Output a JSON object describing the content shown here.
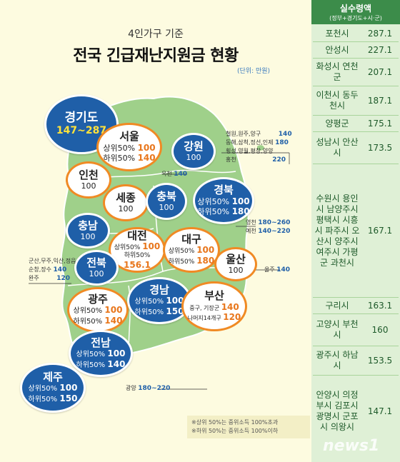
{
  "header": {
    "subtitle": "4인가구 기준",
    "title": "전국 긴급재난지원금 현황",
    "unit": "(단위: 만원)"
  },
  "regions": {
    "gyeonggi": {
      "name": "경기도",
      "value": "147~287"
    },
    "seoul": {
      "name": "서울",
      "upper_label": "상위50%",
      "upper": "100",
      "lower_label": "하위50%",
      "lower": "140"
    },
    "gangwon": {
      "name": "강원",
      "value": "100"
    },
    "incheon": {
      "name": "인천",
      "value": "100"
    },
    "sejong": {
      "name": "세종",
      "value": "100"
    },
    "chungbuk": {
      "name": "충북",
      "value": "100"
    },
    "gyeongbuk": {
      "name": "경북",
      "upper_label": "상위50%",
      "upper": "100",
      "lower_label": "하위50%",
      "lower": "180"
    },
    "chungnam": {
      "name": "충남",
      "value": "100"
    },
    "daejeon": {
      "name": "대전",
      "upper_label": "상위50%",
      "upper": "100",
      "lower_label": "하위50%",
      "lower": "156.1"
    },
    "daegu": {
      "name": "대구",
      "upper_label": "상위50%",
      "upper": "100",
      "lower_label": "하위50%",
      "lower": "180"
    },
    "jeonbuk": {
      "name": "전북",
      "value": "100"
    },
    "ulsan": {
      "name": "울산",
      "value": "100"
    },
    "gwangju": {
      "name": "광주",
      "upper_label": "상위50%",
      "upper": "100",
      "lower_label": "하위50%",
      "lower": "140"
    },
    "gyeongnam": {
      "name": "경남",
      "upper_label": "상위50%",
      "upper": "100",
      "lower_label": "하위50%",
      "lower": "150"
    },
    "busan": {
      "name": "부산",
      "line1_label": "중구, 기장군",
      "line1": "140",
      "line2_label": "나머지14개구",
      "line2": "120"
    },
    "jeonnam": {
      "name": "전남",
      "upper_label": "상위50%",
      "upper": "100",
      "lower_label": "하위50%",
      "lower": "140"
    },
    "jeju": {
      "name": "제주",
      "upper_label": "상위50%",
      "upper": "100",
      "lower_label": "하위50%",
      "lower": "150"
    }
  },
  "notes": {
    "gangwon_1_label": "철원,원주,양구",
    "gangwon_1": "140",
    "gangwon_2_label": "동해,삼척,정선,인제",
    "gangwon_2": "180",
    "gangwon_3_label": "횡성,영월,평창,양양",
    "gangwon_3": "",
    "gangwon_4_label": "홍천",
    "gangwon_4": "220",
    "okcheon_label": "옥천",
    "okcheon": "140",
    "yeongcheon_label": "영천",
    "yeongcheon": "180~260",
    "yecheon_label": "예천",
    "yecheon": "140~220",
    "jeonbuk_1_label": "군산,무주,익산,정읍",
    "jeonbuk_1": "",
    "jeonbuk_2_label": "순창,장수",
    "jeonbuk_2": "140",
    "jeonbuk_3_label": "완주",
    "jeonbuk_3": "120",
    "ulju_label": "울주",
    "ulju": "140",
    "gwangyang_label": "광양",
    "gwangyang": "180~220"
  },
  "footnotes": [
    "※상위 50%는 중위소득 100%초과",
    "※하위 50%는 중위소득 100%이하"
  ],
  "table": {
    "title": "실수령액",
    "subtitle": "(정부+경기도+시·군)",
    "rows": [
      {
        "names": "포천시",
        "amount": "287.1"
      },
      {
        "names": "안성시",
        "amount": "227.1"
      },
      {
        "names": "화성시 연천군",
        "amount": "207.1"
      },
      {
        "names": "이천시 동두천시",
        "amount": "187.1"
      },
      {
        "names": "양평군",
        "amount": "175.1"
      },
      {
        "names": "성남시 안산시",
        "amount": "173.5"
      },
      {
        "names": "수원시 용인시 남양주시 평택시 시흥시 파주시 오산시 양주시 여주시 가평군 과천시",
        "amount": "167.1"
      },
      {
        "names": "구리시",
        "amount": "163.1"
      },
      {
        "names": "고양시 부천시",
        "amount": "160"
      },
      {
        "names": "광주시 하남시",
        "amount": "153.5"
      },
      {
        "names": "안양시 의정부시 김포시 광명시 군포시 의왕시",
        "amount": "147.1"
      }
    ]
  },
  "watermark": "news1",
  "colors": {
    "blue": "#1f5fa8",
    "orange": "#f08a24",
    "land": "#9fd08a",
    "green_header": "#3c8c4a"
  }
}
